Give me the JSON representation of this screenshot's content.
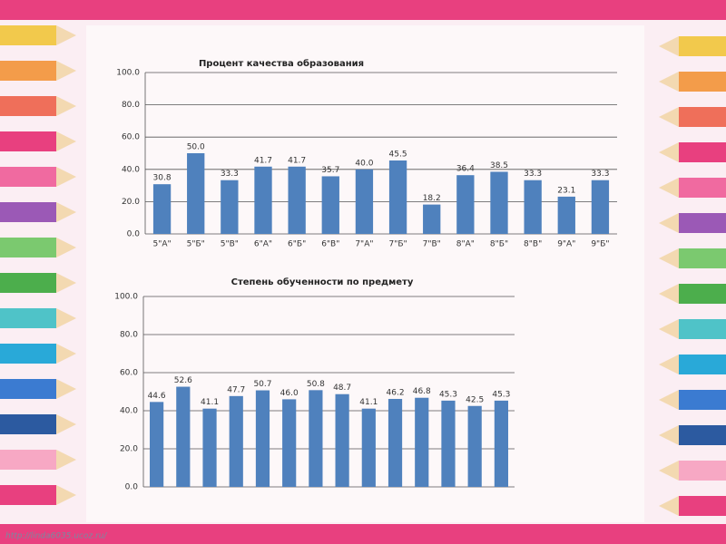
{
  "chart_data": [
    {
      "type": "bar",
      "title": "Процент качества образования",
      "categories": [
        "5\"А\"",
        "5\"Б\"",
        "5\"В\"",
        "6\"А\"",
        "6\"Б\"",
        "6\"В\"",
        "7\"А\"",
        "7\"Б\"",
        "7\"В\"",
        "8\"А\"",
        "8\"Б\"",
        "8\"В\"",
        "9\"А\"",
        "9\"Б\""
      ],
      "values": [
        30.8,
        50.0,
        33.3,
        41.7,
        41.7,
        35.7,
        40.0,
        45.5,
        18.2,
        36.4,
        38.5,
        33.3,
        23.1,
        33.3
      ],
      "value_labels": [
        "30.8",
        "50.0",
        "33.3",
        "41.7",
        "41.7",
        "35.7",
        "40.0",
        "45.5",
        "18.2",
        "36.4",
        "38.5",
        "33.3",
        "23.1",
        "33.3"
      ],
      "color": "#4f81bd",
      "ylim": [
        0,
        100
      ],
      "yticks": [
        {
          "value": 0,
          "label": "0.0"
        },
        {
          "value": 20,
          "label": "20.0"
        },
        {
          "value": 40,
          "label": "40.0"
        },
        {
          "value": 60,
          "label": "60.0"
        },
        {
          "value": 80,
          "label": "80.0"
        },
        {
          "value": 100,
          "label": "100.0"
        }
      ],
      "grid": true
    },
    {
      "type": "bar",
      "title": "Степень обученности по предмету",
      "values": [
        44.6,
        52.6,
        41.1,
        47.7,
        50.7,
        46.0,
        50.8,
        48.7,
        41.1,
        46.2,
        46.8,
        45.3,
        42.5,
        45.3
      ],
      "value_labels": [
        "44.6",
        "52.6",
        "41.1",
        "47.7",
        "50.7",
        "46.0",
        "50.8",
        "48.7",
        "41.1",
        "46.2",
        "46.8",
        "45.3",
        "42.5",
        "45.3"
      ],
      "color": "#4f81bd",
      "ylim": [
        0,
        100
      ],
      "yticks": [
        {
          "value": 0,
          "label": "0.0"
        },
        {
          "value": 20,
          "label": "20.0"
        },
        {
          "value": 40,
          "label": "40.0"
        },
        {
          "value": 60,
          "label": "60.0"
        },
        {
          "value": 80,
          "label": "80.0"
        },
        {
          "value": 100,
          "label": "100.0"
        }
      ],
      "grid": true
    }
  ],
  "footer": "http://linda6035.ucoz.ru/"
}
